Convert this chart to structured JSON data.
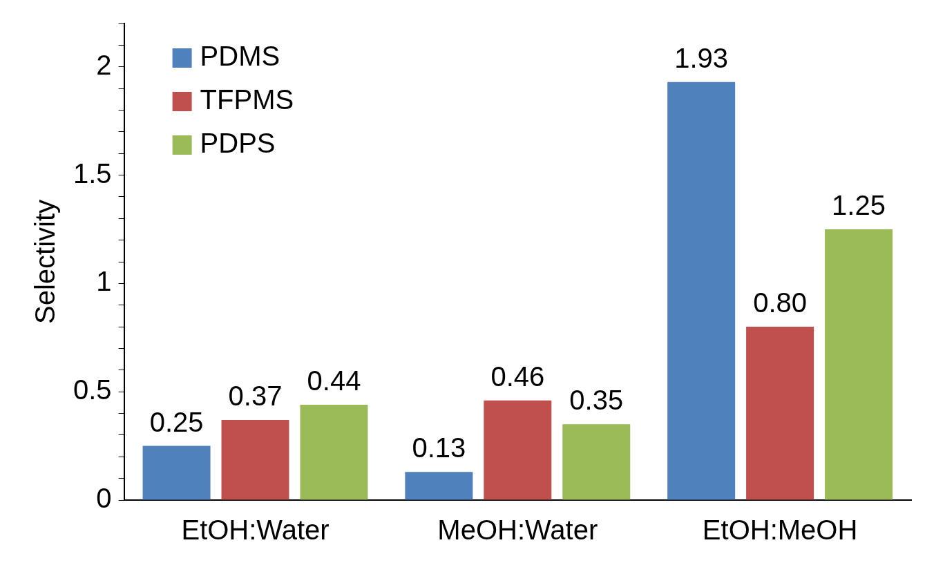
{
  "chart_data": {
    "type": "bar",
    "ylabel": "Selectivity",
    "categories": [
      "EtOH:Water",
      "MeOH:Water",
      "EtOH:MeOH"
    ],
    "series": [
      {
        "name": "PDMS",
        "color": "#4f81bd",
        "values": [
          0.25,
          0.13,
          1.93
        ],
        "value_labels": [
          "0.25",
          "0.13",
          "1.93"
        ]
      },
      {
        "name": "TFPMS",
        "color": "#c0504d",
        "values": [
          0.37,
          0.46,
          0.8
        ],
        "value_labels": [
          "0.37",
          "0.46",
          "0.80"
        ]
      },
      {
        "name": "PDPS",
        "color": "#9bbb59",
        "values": [
          0.44,
          0.35,
          1.25
        ],
        "value_labels": [
          "0.44",
          "0.35",
          "1.25"
        ]
      }
    ],
    "ylim": [
      0,
      2.2
    ],
    "yticks": [
      0,
      {
        "value": 0.1,
        "label": null
      },
      {
        "value": 0.2,
        "label": null
      },
      {
        "value": 0.3,
        "label": null
      },
      {
        "value": 0.4,
        "label": null
      },
      0.5,
      {
        "value": 0.6,
        "label": null
      },
      {
        "value": 0.7,
        "label": null
      },
      {
        "value": 0.8,
        "label": null
      },
      {
        "value": 0.9,
        "label": null
      },
      1,
      {
        "value": 1.1,
        "label": null
      },
      {
        "value": 1.2,
        "label": null
      },
      {
        "value": 1.3,
        "label": null
      },
      {
        "value": 1.4,
        "label": null
      },
      1.5,
      {
        "value": 1.6,
        "label": null
      },
      {
        "value": 1.7,
        "label": null
      },
      {
        "value": 1.8,
        "label": null
      },
      {
        "value": 1.9,
        "label": null
      },
      2,
      {
        "value": 2.1,
        "label": null
      },
      {
        "value": 2.2,
        "label": null
      }
    ],
    "legend": "top left"
  }
}
